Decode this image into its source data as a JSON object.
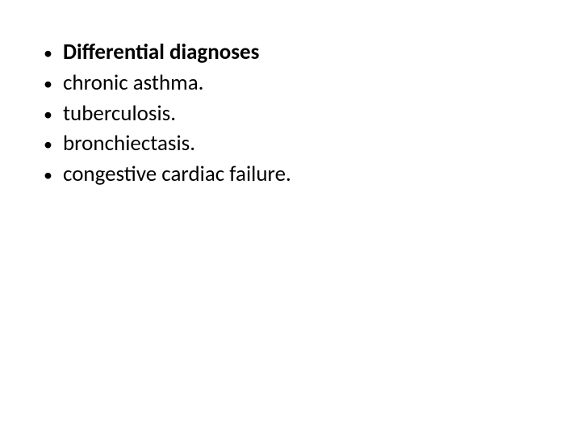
{
  "slide": {
    "background_color": "#ffffff",
    "text_color": "#000000",
    "font_family": "Calibri",
    "bullet_fontsize": 27,
    "items": [
      {
        "text": "Differential diagnoses",
        "bold": true
      },
      {
        "text": "chronic asthma.",
        "bold": false
      },
      {
        "text": "tuberculosis.",
        "bold": false
      },
      {
        "text": "bronchiectasis.",
        "bold": false
      },
      {
        "text": "congestive cardiac failure.",
        "bold": false
      }
    ]
  }
}
